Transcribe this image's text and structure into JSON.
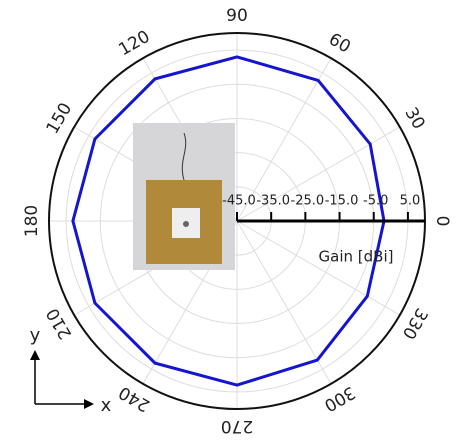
{
  "chart_data": {
    "type": "polar",
    "axis_label": "Gain [dBi]",
    "x_axis_label": "x",
    "y_axis_label": "y",
    "rlim": [
      -45,
      10
    ],
    "rticks": [
      {
        "value": -45,
        "label": "-45.0"
      },
      {
        "value": -35,
        "label": "-35.0"
      },
      {
        "value": -25,
        "label": "-25.0"
      },
      {
        "value": -15,
        "label": "-15.0"
      },
      {
        "value": -5,
        "label": "-5.0"
      },
      {
        "value": 5,
        "label": "5.0"
      }
    ],
    "thetaticks": [
      0,
      30,
      60,
      90,
      120,
      150,
      180,
      210,
      240,
      270,
      300,
      330
    ],
    "grid": true,
    "series": [
      {
        "name": "Gain",
        "color": "#1515d0",
        "theta": [
          0,
          30,
          60,
          90,
          120,
          150,
          180,
          210,
          240,
          270,
          300,
          330,
          360
        ],
        "values": [
          -2,
          0,
          2.5,
          3,
          3,
          3,
          3,
          3,
          3,
          3,
          2,
          -1,
          -2
        ]
      }
    ]
  }
}
